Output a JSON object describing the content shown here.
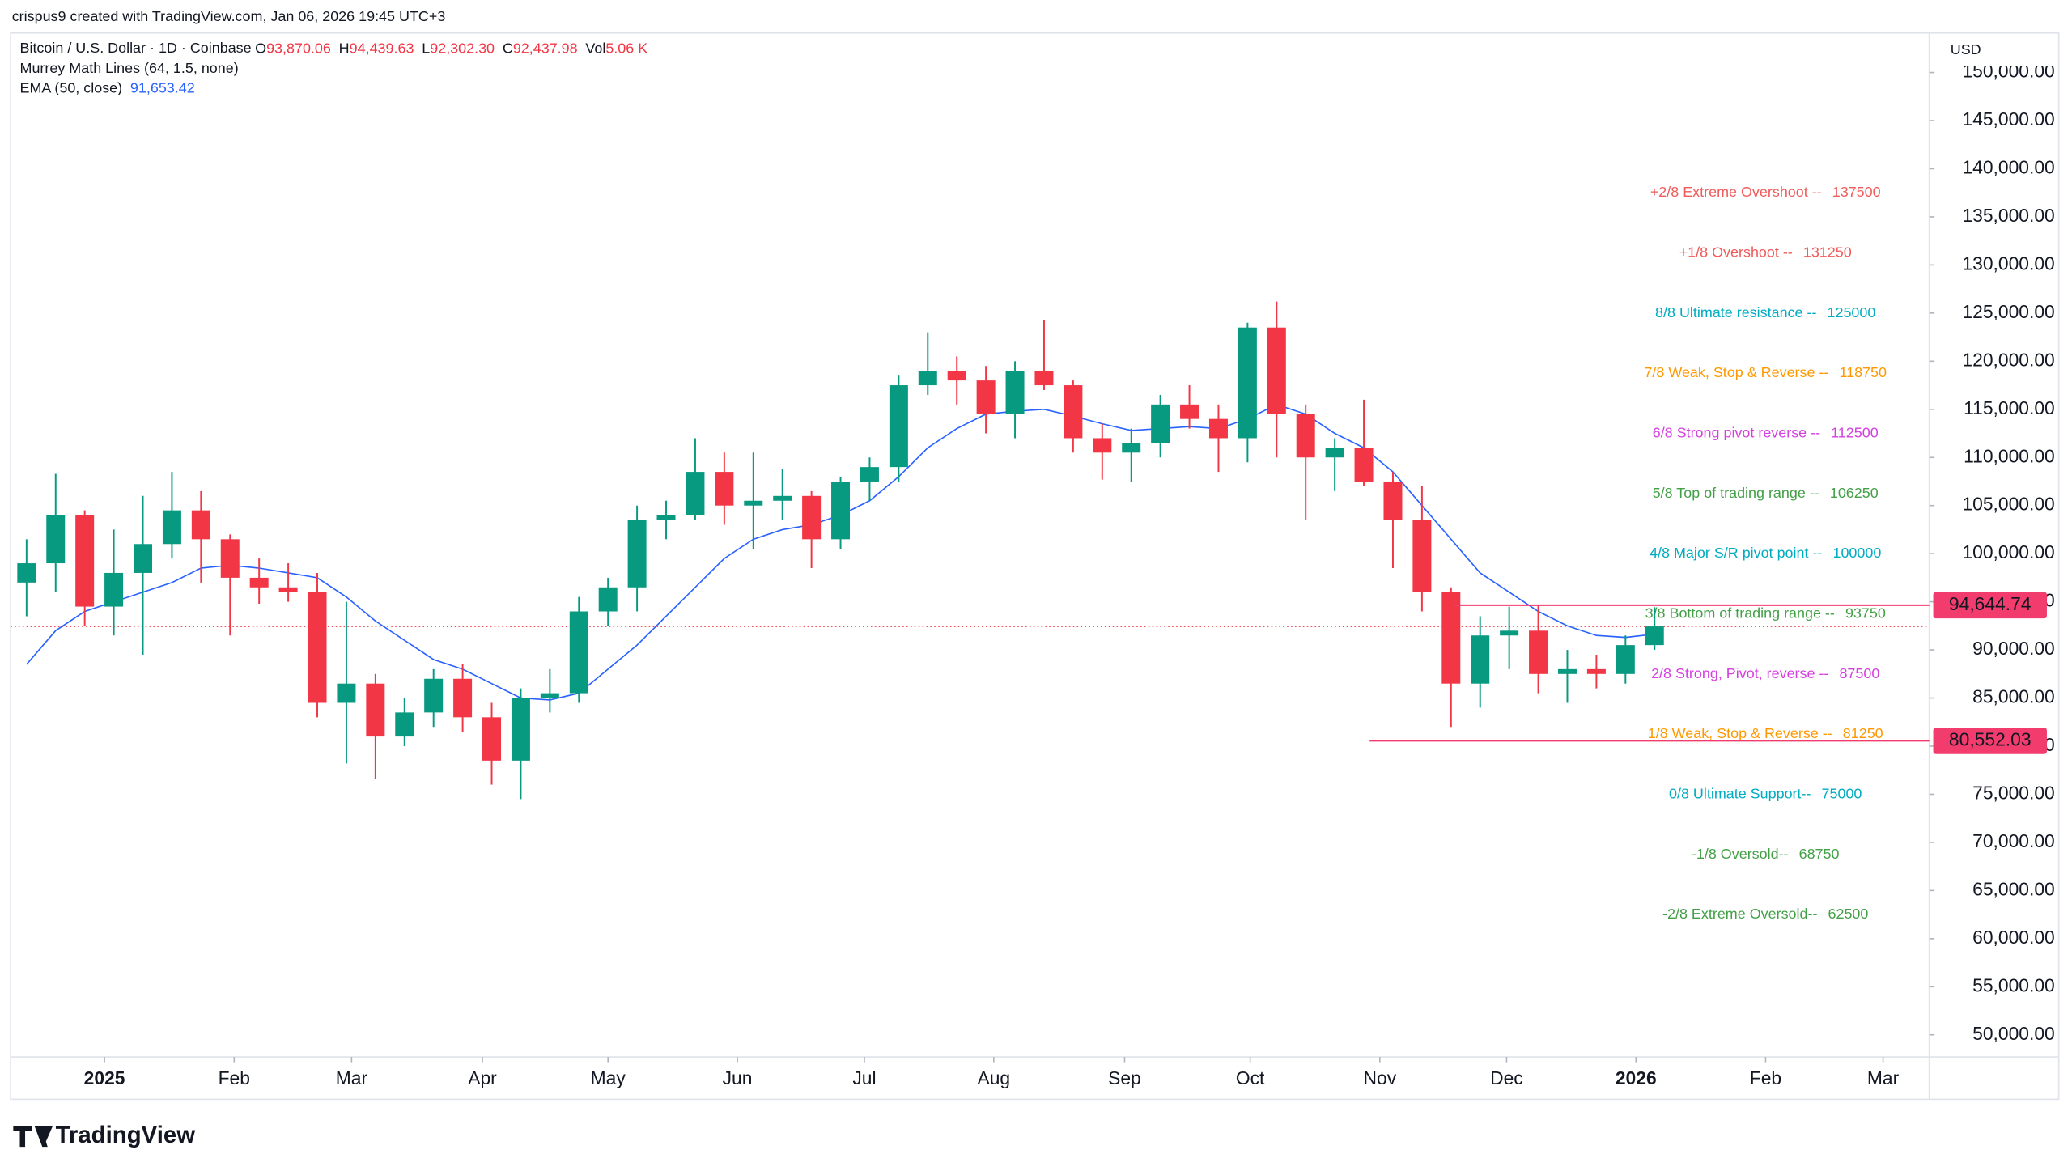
{
  "chart_data": {
    "type": "candlestick",
    "credit": "crispus9 created with TradingView.com, Jan 06, 2026 19:45 UTC+3",
    "symbol": "Bitcoin / U.S. Dollar · 1D · Coinbase",
    "ohlc_legend": [
      {
        "label": "O",
        "value": "93,870.06"
      },
      {
        "label": "H",
        "value": "94,439.63"
      },
      {
        "label": "L",
        "value": "92,302.30"
      },
      {
        "label": "C",
        "value": "92,437.98"
      },
      {
        "label": "Vol",
        "value": "5.06 K"
      }
    ],
    "indicators": [
      {
        "name": "Murrey Math Lines (64, 1.5, none)"
      },
      {
        "name": "EMA (50, close)",
        "value": "91,653.42",
        "color": "#2962ff"
      }
    ],
    "currency": "USD",
    "brand": "TradingView",
    "up_color": "#089981",
    "down_color": "#f23645",
    "open": [
      97000,
      99000,
      104000,
      94500,
      98000,
      101000,
      104500,
      101500,
      97500,
      96500,
      96000,
      84500,
      86500,
      81000,
      83500,
      87000,
      83000,
      78500,
      85000,
      85500,
      94000,
      96500,
      103500,
      104000,
      108500,
      105000,
      105500,
      106000,
      101500,
      107500,
      109000,
      117500,
      119000,
      118000,
      114500,
      119000,
      117500,
      112000,
      110500,
      111500,
      115500,
      114000,
      112000,
      123500,
      114500,
      110000,
      111000,
      107500,
      103500,
      96000,
      86500,
      91500,
      92000,
      87500,
      88000,
      87500,
      90500
    ],
    "high": [
      101500,
      108300,
      104500,
      102500,
      106000,
      108500,
      106500,
      102000,
      99500,
      99000,
      98000,
      95000,
      87500,
      85000,
      88000,
      88500,
      84500,
      86000,
      88000,
      95500,
      97500,
      105000,
      105500,
      112000,
      110500,
      110500,
      108800,
      106500,
      108000,
      110000,
      118500,
      123000,
      120500,
      119500,
      120000,
      124300,
      118000,
      113500,
      113000,
      116500,
      117500,
      115500,
      124000,
      126200,
      115500,
      112000,
      116000,
      108500,
      107000,
      96500,
      93500,
      94500,
      94600,
      90000,
      89500,
      91500,
      94440
    ],
    "low": [
      93500,
      96000,
      92500,
      91500,
      89500,
      99500,
      97000,
      91500,
      94800,
      95000,
      83000,
      78200,
      76600,
      80000,
      82000,
      81500,
      76000,
      74500,
      83500,
      84500,
      92500,
      94000,
      101500,
      103500,
      103000,
      100500,
      103500,
      98500,
      100500,
      105500,
      107500,
      116500,
      115500,
      112500,
      112000,
      117000,
      110500,
      107700,
      107500,
      110000,
      113000,
      108500,
      109500,
      110000,
      103500,
      106500,
      107000,
      98500,
      94000,
      82000,
      84000,
      88000,
      85500,
      84500,
      86000,
      86500,
      90000
    ],
    "close": [
      99000,
      104000,
      94500,
      98000,
      101000,
      104500,
      101500,
      97500,
      96500,
      96000,
      84500,
      86500,
      81000,
      83500,
      87000,
      83000,
      78500,
      85000,
      85500,
      94000,
      96500,
      103500,
      104000,
      108500,
      105000,
      105500,
      106000,
      101500,
      107500,
      109000,
      117500,
      119000,
      118000,
      114500,
      119000,
      117500,
      112000,
      110500,
      111500,
      115500,
      114000,
      112000,
      123500,
      114500,
      110000,
      111000,
      107500,
      103500,
      96000,
      86500,
      91500,
      92000,
      87500,
      88000,
      87500,
      90500,
      92438
    ],
    "ema": [
      88500,
      92000,
      94000,
      95000,
      96000,
      97000,
      98500,
      98800,
      98500,
      98000,
      97500,
      95500,
      93000,
      91000,
      89000,
      88000,
      86500,
      85000,
      84800,
      85500,
      88000,
      90500,
      93500,
      96500,
      99500,
      101500,
      102500,
      103000,
      104000,
      105500,
      108000,
      111000,
      113000,
      114500,
      114800,
      115000,
      114300,
      113500,
      112800,
      113000,
      113200,
      113000,
      114000,
      115500,
      114500,
      112500,
      111000,
      108500,
      105000,
      101500,
      98000,
      96000,
      94000,
      92500,
      91500,
      91300,
      91650
    ],
    "xlim": [
      -0.55,
      65.45
    ],
    "xticks": [
      {
        "value": 2.68,
        "label": "2025"
      },
      {
        "value": 7.14,
        "label": "Feb"
      },
      {
        "value": 11.18,
        "label": "Mar"
      },
      {
        "value": 15.68,
        "label": "Apr"
      },
      {
        "value": 20.0,
        "label": "May"
      },
      {
        "value": 24.45,
        "label": "Jun"
      },
      {
        "value": 28.82,
        "label": "Jul"
      },
      {
        "value": 33.27,
        "label": "Aug"
      },
      {
        "value": 37.77,
        "label": "Sep"
      },
      {
        "value": 42.09,
        "label": "Oct"
      },
      {
        "value": 46.55,
        "label": "Nov"
      },
      {
        "value": 50.91,
        "label": "Dec"
      },
      {
        "value": 55.36,
        "label": "2026"
      },
      {
        "value": 59.82,
        "label": "Feb"
      },
      {
        "value": 63.86,
        "label": "Mar"
      }
    ],
    "ylim": [
      47700,
      154100
    ],
    "yticks": [
      {
        "value": 50000,
        "label": "50,000.00"
      },
      {
        "value": 55000,
        "label": "55,000.00"
      },
      {
        "value": 60000,
        "label": "60,000.00"
      },
      {
        "value": 65000,
        "label": "65,000.00"
      },
      {
        "value": 70000,
        "label": "70,000.00"
      },
      {
        "value": 75000,
        "label": "75,000.00"
      },
      {
        "value": 80000,
        "label": "80,000.00"
      },
      {
        "value": 85000,
        "label": "85,000.00"
      },
      {
        "value": 90000,
        "label": "90,000.00"
      },
      {
        "value": 95000,
        "label": "95,000.00"
      },
      {
        "value": 100000,
        "label": "100,000.00"
      },
      {
        "value": 105000,
        "label": "105,000.00"
      },
      {
        "value": 110000,
        "label": "110,000.00"
      },
      {
        "value": 115000,
        "label": "115,000.00"
      },
      {
        "value": 120000,
        "label": "120,000.00"
      },
      {
        "value": 125000,
        "label": "125,000.00"
      },
      {
        "value": 130000,
        "label": "130,000.00"
      },
      {
        "value": 135000,
        "label": "135,000.00"
      },
      {
        "value": 140000,
        "label": "140,000.00"
      },
      {
        "value": 145000,
        "label": "145,000.00"
      },
      {
        "value": 150000,
        "label": "150,000.00"
      }
    ],
    "murrey_levels": [
      {
        "label": "+2/8 Extreme Overshoot --",
        "value": 137500,
        "color": "#f05a5a"
      },
      {
        "label": "+1/8 Overshoot --",
        "value": 131250,
        "color": "#f05a5a"
      },
      {
        "label": "8/8 Ultimate resistance --",
        "value": 125000,
        "color": "#00acc1"
      },
      {
        "label": "7/8 Weak, Stop & Reverse --",
        "value": 118750,
        "color": "#ff9800"
      },
      {
        "label": "6/8 Strong pivot reverse --",
        "value": 112500,
        "color": "#d43fe0"
      },
      {
        "label": "5/8 Top of trading range --",
        "value": 106250,
        "color": "#43a047"
      },
      {
        "label": "4/8 Major S/R pivot point --",
        "value": 100000,
        "color": "#00acc1"
      },
      {
        "label": "3/8 Bottom of trading range --",
        "value": 93750,
        "color": "#43a047"
      },
      {
        "label": "2/8 Strong, Pivot, reverse --",
        "value": 87500,
        "color": "#d43fe0"
      },
      {
        "label": "1/8 Weak, Stop & Reverse --",
        "value": 81250,
        "color": "#ff9800"
      },
      {
        "label": "0/8 Ultimate Support--",
        "value": 75000,
        "color": "#00acc1"
      },
      {
        "label": "-1/8 Oversold--",
        "value": 68750,
        "color": "#43a047"
      },
      {
        "label": "-2/8 Extreme Oversold--",
        "value": 62500,
        "color": "#43a047"
      }
    ],
    "horizontal_lines": [
      {
        "value": 94644.74,
        "label": "94,644.74",
        "from": 49.1,
        "color": "#f23c6e"
      },
      {
        "value": 80552.03,
        "label": "80,552.03",
        "from": 46.2,
        "color": "#f23c6e"
      }
    ],
    "last_price": 92437.98
  }
}
